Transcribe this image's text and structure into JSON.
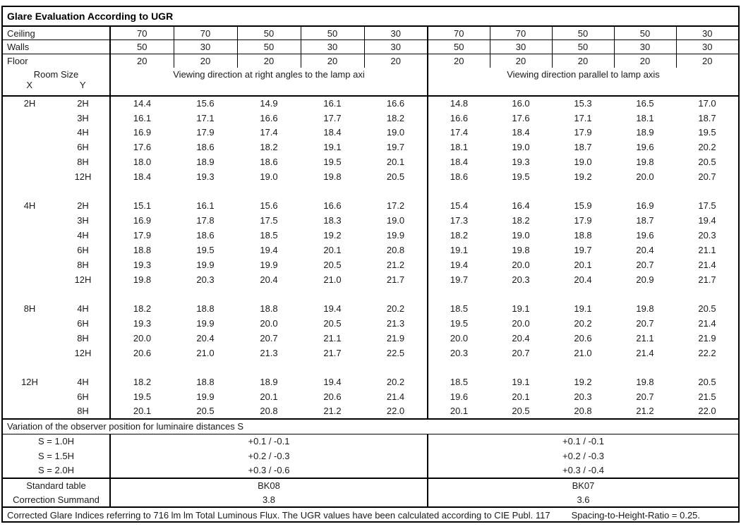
{
  "title": "Glare Evaluation According to UGR",
  "reflectance_rows": [
    {
      "label": "Ceiling",
      "values": [
        "70",
        "70",
        "50",
        "50",
        "30",
        "70",
        "70",
        "50",
        "50",
        "30"
      ]
    },
    {
      "label": "Walls",
      "values": [
        "50",
        "30",
        "50",
        "30",
        "30",
        "50",
        "30",
        "50",
        "30",
        "30"
      ]
    },
    {
      "label": "Floor",
      "values": [
        "20",
        "20",
        "20",
        "20",
        "20",
        "20",
        "20",
        "20",
        "20",
        "20"
      ]
    }
  ],
  "header": {
    "room_size": "Room Size",
    "x_label": "X",
    "y_label": "Y",
    "left_title": "Viewing direction at right angles to the lamp axi",
    "right_title": "Viewing direction parallel to lamp axis"
  },
  "ugr_blocks": [
    {
      "x": "2H",
      "rows": [
        {
          "y": "2H",
          "left": [
            "14.4",
            "15.6",
            "14.9",
            "16.1",
            "16.6"
          ],
          "right": [
            "14.8",
            "16.0",
            "15.3",
            "16.5",
            "17.0"
          ]
        },
        {
          "y": "3H",
          "left": [
            "16.1",
            "17.1",
            "16.6",
            "17.7",
            "18.2"
          ],
          "right": [
            "16.6",
            "17.6",
            "17.1",
            "18.1",
            "18.7"
          ]
        },
        {
          "y": "4H",
          "left": [
            "16.9",
            "17.9",
            "17.4",
            "18.4",
            "19.0"
          ],
          "right": [
            "17.4",
            "18.4",
            "17.9",
            "18.9",
            "19.5"
          ]
        },
        {
          "y": "6H",
          "left": [
            "17.6",
            "18.6",
            "18.2",
            "19.1",
            "19.7"
          ],
          "right": [
            "18.1",
            "19.0",
            "18.7",
            "19.6",
            "20.2"
          ]
        },
        {
          "y": "8H",
          "left": [
            "18.0",
            "18.9",
            "18.6",
            "19.5",
            "20.1"
          ],
          "right": [
            "18.4",
            "19.3",
            "19.0",
            "19.8",
            "20.5"
          ]
        },
        {
          "y": "12H",
          "left": [
            "18.4",
            "19.3",
            "19.0",
            "19.8",
            "20.5"
          ],
          "right": [
            "18.6",
            "19.5",
            "19.2",
            "20.0",
            "20.7"
          ]
        }
      ]
    },
    {
      "x": "4H",
      "rows": [
        {
          "y": "2H",
          "left": [
            "15.1",
            "16.1",
            "15.6",
            "16.6",
            "17.2"
          ],
          "right": [
            "15.4",
            "16.4",
            "15.9",
            "16.9",
            "17.5"
          ]
        },
        {
          "y": "3H",
          "left": [
            "16.9",
            "17.8",
            "17.5",
            "18.3",
            "19.0"
          ],
          "right": [
            "17.3",
            "18.2",
            "17.9",
            "18.7",
            "19.4"
          ]
        },
        {
          "y": "4H",
          "left": [
            "17.9",
            "18.6",
            "18.5",
            "19.2",
            "19.9"
          ],
          "right": [
            "18.2",
            "19.0",
            "18.8",
            "19.6",
            "20.3"
          ]
        },
        {
          "y": "6H",
          "left": [
            "18.8",
            "19.5",
            "19.4",
            "20.1",
            "20.8"
          ],
          "right": [
            "19.1",
            "19.8",
            "19.7",
            "20.4",
            "21.1"
          ]
        },
        {
          "y": "8H",
          "left": [
            "19.3",
            "19.9",
            "19.9",
            "20.5",
            "21.2"
          ],
          "right": [
            "19.4",
            "20.0",
            "20.1",
            "20.7",
            "21.4"
          ]
        },
        {
          "y": "12H",
          "left": [
            "19.8",
            "20.3",
            "20.4",
            "21.0",
            "21.7"
          ],
          "right": [
            "19.7",
            "20.3",
            "20.4",
            "20.9",
            "21.7"
          ]
        }
      ]
    },
    {
      "x": "8H",
      "rows": [
        {
          "y": "4H",
          "left": [
            "18.2",
            "18.8",
            "18.8",
            "19.4",
            "20.2"
          ],
          "right": [
            "18.5",
            "19.1",
            "19.1",
            "19.8",
            "20.5"
          ]
        },
        {
          "y": "6H",
          "left": [
            "19.3",
            "19.9",
            "20.0",
            "20.5",
            "21.3"
          ],
          "right": [
            "19.5",
            "20.0",
            "20.2",
            "20.7",
            "21.4"
          ]
        },
        {
          "y": "8H",
          "left": [
            "20.0",
            "20.4",
            "20.7",
            "21.1",
            "21.9"
          ],
          "right": [
            "20.0",
            "20.4",
            "20.6",
            "21.1",
            "21.9"
          ]
        },
        {
          "y": "12H",
          "left": [
            "20.6",
            "21.0",
            "21.3",
            "21.7",
            "22.5"
          ],
          "right": [
            "20.3",
            "20.7",
            "21.0",
            "21.4",
            "22.2"
          ]
        }
      ]
    },
    {
      "x": "12H",
      "rows": [
        {
          "y": "4H",
          "left": [
            "18.2",
            "18.8",
            "18.9",
            "19.4",
            "20.2"
          ],
          "right": [
            "18.5",
            "19.1",
            "19.2",
            "19.8",
            "20.5"
          ]
        },
        {
          "y": "6H",
          "left": [
            "19.5",
            "19.9",
            "20.1",
            "20.6",
            "21.4"
          ],
          "right": [
            "19.6",
            "20.1",
            "20.3",
            "20.7",
            "21.5"
          ]
        },
        {
          "y": "8H",
          "left": [
            "20.1",
            "20.5",
            "20.8",
            "21.2",
            "22.0"
          ],
          "right": [
            "20.1",
            "20.5",
            "20.8",
            "21.2",
            "22.0"
          ]
        }
      ]
    }
  ],
  "variation": {
    "heading": "Variation of the observer position for luminaire distances S",
    "rows": [
      {
        "label": "S = 1.0H",
        "left": "+0.1 / -0.1",
        "right": "+0.1 / -0.1"
      },
      {
        "label": "S = 1.5H",
        "left": "+0.2 / -0.3",
        "right": "+0.2 / -0.3"
      },
      {
        "label": "S = 2.0H",
        "left": "+0.3 / -0.6",
        "right": "+0.3 / -0.4"
      }
    ]
  },
  "summary_rows": [
    {
      "label": "Standard table",
      "left": "BK08",
      "right": "BK07"
    },
    {
      "label": "Correction Summand",
      "left": "3.8",
      "right": "3.6"
    }
  ],
  "footer": {
    "text": "Corrected Glare Indices referring to 716 lm lm Total Luminous Flux. The UGR values have been calculated according to CIE Publ. 117",
    "ratio": "Spacing-to-Height-Ratio = 0.25."
  }
}
